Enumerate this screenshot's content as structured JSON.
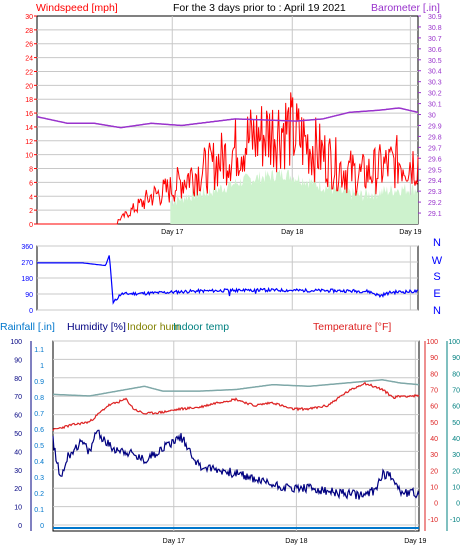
{
  "header": {
    "left_label": "Windspeed [mph]",
    "center_label": "For the 3 days prior to : April 19 2021",
    "right_label": "Barometer [.in]"
  },
  "colors": {
    "windspeed": "#ff0000",
    "gust_fill": "#cdf2cd",
    "barometer": "#9933cc",
    "direction": "#0000ff",
    "humidity": "#000080",
    "indoor_hum": "#808000",
    "indoor_temp": "#008080",
    "temperature": "#dd2222",
    "rainfall": "#0077cc"
  },
  "chart_data": [
    {
      "type": "line",
      "name": "wind-and-barometer",
      "x_ticks": [
        "Day 17",
        "Day 18",
        "Day 19"
      ],
      "y_left": {
        "label": "Windspeed [mph]",
        "ylim": [
          0,
          30
        ],
        "ticks": [
          "0",
          "2",
          "4",
          "6",
          "8",
          "10",
          "12",
          "14",
          "16",
          "18",
          "20",
          "22",
          "24",
          "26",
          "28",
          "30"
        ]
      },
      "y_right": {
        "label": "Barometer [.in]",
        "ylim": [
          29.0,
          30.9
        ],
        "ticks": [
          "29.1",
          "29.2",
          "29.3",
          "29.4",
          "29.5",
          "29.6",
          "29.7",
          "29.8",
          "29.9",
          "30",
          "30.1",
          "30.2",
          "30.3",
          "30.4",
          "30.5",
          "30.6",
          "30.7",
          "30.8",
          "30.9"
        ]
      },
      "series": [
        {
          "name": "Windspeed",
          "axis": "left",
          "t": [
            0,
            0.1,
            0.2,
            0.25,
            0.3,
            0.35,
            0.4,
            0.45,
            0.5,
            0.55,
            0.6,
            0.65,
            0.7,
            0.75,
            0.8,
            0.85,
            0.9,
            0.95,
            1
          ],
          "values": [
            0,
            0,
            0,
            2,
            4,
            5,
            7,
            8,
            10,
            12,
            13,
            14,
            12,
            10,
            8,
            7,
            8,
            9,
            9
          ]
        },
        {
          "name": "Barometer",
          "axis": "right",
          "t": [
            0,
            0.08,
            0.15,
            0.22,
            0.3,
            0.38,
            0.45,
            0.52,
            0.6,
            0.68,
            0.75,
            0.82,
            0.9,
            0.95,
            1
          ],
          "values": [
            29.98,
            29.92,
            29.92,
            29.88,
            29.92,
            29.9,
            29.93,
            29.96,
            29.95,
            29.94,
            29.96,
            30.02,
            30.04,
            30.06,
            30.02
          ]
        }
      ]
    },
    {
      "type": "line",
      "name": "wind-direction",
      "x_ticks": [
        "Day 17",
        "Day 18",
        "Day 19"
      ],
      "y_left": {
        "ylim": [
          0,
          360
        ],
        "ticks": [
          "0",
          "90",
          "180",
          "270",
          "360"
        ]
      },
      "y_right": {
        "ticks": [
          "N",
          "W",
          "S",
          "E",
          "N"
        ]
      },
      "series": [
        {
          "name": "Wind direction",
          "t": [
            0,
            0.12,
            0.16,
            0.18,
            0.19,
            0.2,
            0.22,
            0.3,
            0.4,
            0.5,
            0.6,
            0.7,
            0.8,
            0.87,
            0.9,
            0.93,
            1
          ],
          "values": [
            265,
            265,
            255,
            250,
            310,
            40,
            90,
            95,
            105,
            110,
            112,
            110,
            108,
            105,
            80,
            100,
            105
          ]
        }
      ]
    },
    {
      "type": "line",
      "name": "humidity-temperature",
      "x_ticks": [
        "Day 17",
        "Day 18",
        "Day 19"
      ],
      "legend": [
        "Rainfall [.in]",
        "Humidity [%]",
        "Indoor hum",
        "Indoor temp",
        "Temperature [°F]"
      ],
      "y_humidity": {
        "ylim": [
          0,
          100
        ],
        "ticks": [
          "0",
          "10",
          "20",
          "30",
          "40",
          "50",
          "60",
          "70",
          "80",
          "90",
          "100"
        ]
      },
      "y_rain": {
        "ylim": [
          0,
          1.1
        ],
        "ticks": [
          "0",
          "0.1",
          "0.2",
          "0.3",
          "0.4",
          "0.5",
          "0.6",
          "0.7",
          "0.8",
          "0.9",
          "1",
          "1.1"
        ]
      },
      "y_temp": {
        "ylim": [
          -20,
          100
        ],
        "ticks": [
          "-10",
          "0",
          "10",
          "20",
          "30",
          "40",
          "50",
          "60",
          "70",
          "80",
          "90",
          "100"
        ]
      },
      "series": [
        {
          "name": "Humidity [%]",
          "t": [
            0,
            0.02,
            0.04,
            0.06,
            0.08,
            0.1,
            0.12,
            0.14,
            0.16,
            0.2,
            0.25,
            0.3,
            0.35,
            0.4,
            0.45,
            0.5,
            0.55,
            0.6,
            0.65,
            0.7,
            0.75,
            0.8,
            0.85,
            0.88,
            0.9,
            0.93,
            0.95,
            1
          ],
          "values": [
            46,
            25,
            37,
            42,
            45,
            39,
            52,
            46,
            42,
            40,
            35,
            42,
            48,
            32,
            30,
            28,
            25,
            22,
            20,
            20,
            18,
            17,
            16,
            19,
            28,
            26,
            18,
            17
          ]
        },
        {
          "name": "Indoor temp",
          "t": [
            0,
            0.1,
            0.2,
            0.25,
            0.3,
            0.4,
            0.5,
            0.6,
            0.7,
            0.8,
            0.85,
            0.9,
            0.95,
            1
          ],
          "values": [
            67,
            66,
            70,
            72,
            69,
            69,
            70,
            73,
            72,
            74,
            75,
            76,
            74,
            73
          ]
        },
        {
          "name": "Temperature [°F]",
          "t": [
            0,
            0.05,
            0.1,
            0.15,
            0.2,
            0.22,
            0.25,
            0.3,
            0.35,
            0.4,
            0.45,
            0.5,
            0.55,
            0.6,
            0.65,
            0.7,
            0.75,
            0.8,
            0.85,
            0.9,
            0.93,
            0.95,
            1
          ],
          "values": [
            45,
            48,
            50,
            60,
            64,
            58,
            55,
            56,
            58,
            59,
            62,
            64,
            60,
            62,
            58,
            58,
            60,
            68,
            74,
            70,
            65,
            66,
            66
          ]
        },
        {
          "name": "Rainfall [.in]",
          "t": [
            0,
            1
          ],
          "values": [
            0,
            0
          ]
        }
      ]
    }
  ]
}
